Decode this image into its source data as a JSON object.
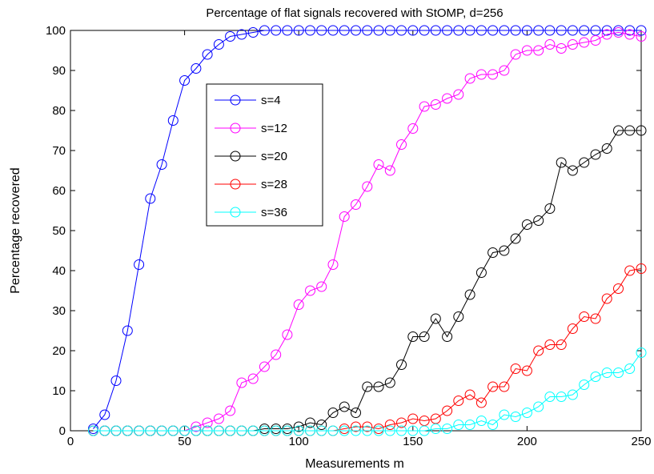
{
  "chart_data": {
    "type": "line",
    "title": "Percentage of flat signals recovered with StOMP, d=256",
    "xlabel": "Measurements m",
    "ylabel": "Percentage recovered",
    "xlim": [
      0,
      250
    ],
    "ylim": [
      0,
      100
    ],
    "xticks": [
      0,
      50,
      100,
      150,
      200,
      250
    ],
    "yticks": [
      0,
      10,
      20,
      30,
      40,
      50,
      60,
      70,
      80,
      90,
      100
    ],
    "grid": false,
    "legend_position": "upper-left-inside",
    "marker": "circle",
    "x": [
      10,
      15,
      20,
      25,
      30,
      35,
      40,
      45,
      50,
      55,
      60,
      65,
      70,
      75,
      80,
      85,
      90,
      95,
      100,
      105,
      110,
      115,
      120,
      125,
      130,
      135,
      140,
      145,
      150,
      155,
      160,
      165,
      170,
      175,
      180,
      185,
      190,
      195,
      200,
      205,
      210,
      215,
      220,
      225,
      230,
      235,
      240,
      245,
      250
    ],
    "series": [
      {
        "name": "s=4",
        "color": "#0000ff",
        "values": [
          0.5,
          4,
          12.5,
          25,
          41.5,
          58,
          66.5,
          77.5,
          87.5,
          90.5,
          94,
          96.5,
          98.5,
          99,
          99.5,
          100,
          100,
          100,
          100,
          100,
          100,
          100,
          100,
          100,
          100,
          100,
          100,
          100,
          100,
          100,
          100,
          100,
          100,
          100,
          100,
          100,
          100,
          100,
          100,
          100,
          100,
          100,
          100,
          100,
          100,
          100,
          100,
          100,
          100
        ]
      },
      {
        "name": "s=12",
        "color": "#ff00ff",
        "values": [
          0,
          0,
          0,
          0,
          0,
          0,
          0,
          0,
          0,
          1,
          2,
          3,
          5,
          12,
          13,
          16,
          19,
          24,
          31.5,
          35,
          36,
          41.5,
          53.5,
          56.5,
          61,
          66.5,
          65,
          71.5,
          75.5,
          81,
          81.5,
          83,
          84,
          88,
          89,
          89,
          90,
          94,
          95,
          95,
          96.5,
          95.5,
          96.5,
          97,
          97.5,
          99,
          99.5,
          99,
          98.5
        ]
      },
      {
        "name": "s=20",
        "color": "#000000",
        "values": [
          0,
          0,
          0,
          0,
          0,
          0,
          0,
          0,
          0,
          0,
          0,
          0,
          0,
          0,
          0,
          0.5,
          0.5,
          0.5,
          1,
          2,
          1.5,
          4.5,
          6,
          4.5,
          11,
          11,
          12,
          16.5,
          23.5,
          23.5,
          28,
          23.5,
          28.5,
          34,
          39.5,
          44.5,
          45,
          48,
          51.5,
          52.5,
          55.5,
          67,
          65,
          67,
          69,
          70.5,
          75,
          75,
          75
        ]
      },
      {
        "name": "s=28",
        "color": "#ff0000",
        "values": [
          0,
          0,
          0,
          0,
          0,
          0,
          0,
          0,
          0,
          0,
          0,
          0,
          0,
          0,
          0,
          0,
          0,
          0,
          0,
          0,
          0,
          0,
          0.5,
          1,
          1,
          0.5,
          1.5,
          2,
          3,
          2.5,
          3,
          5,
          7.5,
          9,
          7,
          11,
          11,
          15.5,
          15,
          20,
          21.5,
          21.5,
          25.5,
          28.5,
          28,
          33,
          35.5,
          40,
          40.5
        ]
      },
      {
        "name": "s=36",
        "color": "#00ffff",
        "values": [
          0,
          0,
          0,
          0,
          0,
          0,
          0,
          0,
          0,
          0,
          0,
          0,
          0,
          0,
          0,
          0,
          0,
          0,
          0,
          0,
          0,
          0,
          0,
          0,
          0,
          0,
          0,
          0,
          0,
          0,
          0.5,
          0.5,
          1.5,
          1.5,
          2.5,
          1.5,
          4,
          3.5,
          4.5,
          6,
          8.5,
          8.5,
          9,
          11.5,
          13.5,
          14.5,
          14.5,
          15.5,
          19.5
        ]
      }
    ]
  }
}
